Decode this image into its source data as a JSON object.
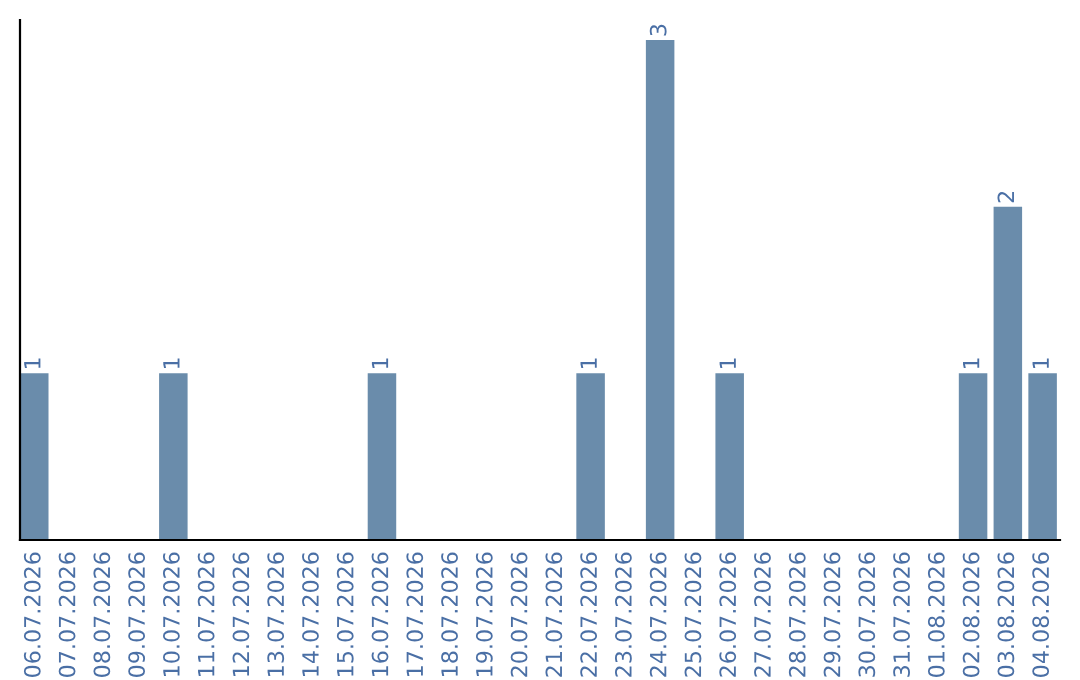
{
  "chart_data": {
    "type": "bar",
    "categories": [
      "06.07.2026",
      "07.07.2026",
      "08.07.2026",
      "09.07.2026",
      "10.07.2026",
      "11.07.2026",
      "12.07.2026",
      "13.07.2026",
      "14.07.2026",
      "15.07.2026",
      "16.07.2026",
      "17.07.2026",
      "18.07.2026",
      "19.07.2026",
      "20.07.2026",
      "21.07.2026",
      "22.07.2026",
      "23.07.2026",
      "24.07.2026",
      "25.07.2026",
      "26.07.2026",
      "27.07.2026",
      "28.07.2026",
      "29.07.2026",
      "30.07.2026",
      "31.07.2026",
      "01.08.2026",
      "02.08.2026",
      "03.08.2026",
      "04.08.2026"
    ],
    "values": [
      1,
      0,
      0,
      0,
      1,
      0,
      0,
      0,
      0,
      0,
      1,
      0,
      0,
      0,
      0,
      0,
      1,
      0,
      3,
      0,
      1,
      0,
      0,
      0,
      0,
      0,
      0,
      1,
      2,
      1
    ],
    "value_labels": [
      "1",
      null,
      null,
      null,
      "1",
      null,
      null,
      null,
      null,
      null,
      "1",
      null,
      null,
      null,
      null,
      null,
      "1",
      null,
      "3",
      null,
      "1",
      null,
      null,
      null,
      null,
      null,
      null,
      "1",
      "2",
      "1"
    ],
    "color": "#6a8cab",
    "grid": false,
    "legend": false
  }
}
